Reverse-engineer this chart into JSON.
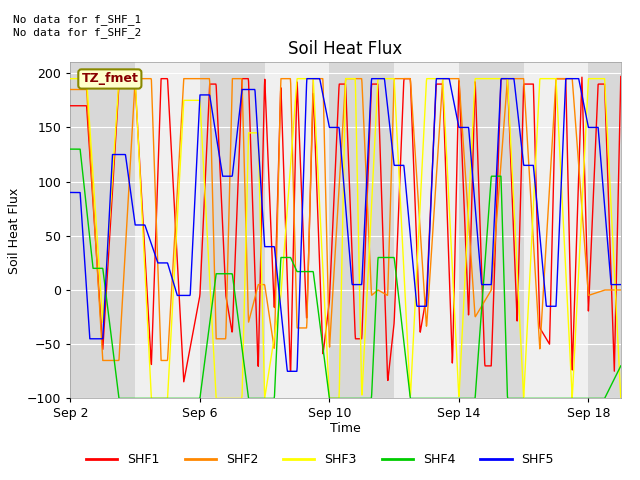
{
  "title": "Soil Heat Flux",
  "ylabel": "Soil Heat Flux",
  "xlabel": "Time",
  "annotation_top": "No data for f_SHF_1\nNo data for f_SHF_2",
  "box_label": "TZ_fmet",
  "ylim": [
    -100,
    210
  ],
  "yticks": [
    -100,
    -50,
    0,
    50,
    100,
    150,
    200
  ],
  "colors": {
    "SHF1": "#ff0000",
    "SHF2": "#ff8800",
    "SHF3": "#ffff00",
    "SHF4": "#00cc00",
    "SHF5": "#0000ff"
  },
  "background_color": "#ffffff",
  "band_light": "#f0f0f0",
  "band_dark": "#d8d8d8",
  "xtick_labels": [
    "Sep 2",
    "Sep 6",
    "Sep 10",
    "Sep 14",
    "Sep 18"
  ],
  "xtick_positions": [
    0,
    4,
    8,
    12,
    16
  ],
  "xlim": [
    0,
    17
  ],
  "shf1_x": [
    0,
    0.5,
    1.0,
    1.5,
    2.0,
    2.5,
    2.8,
    3.0,
    3.5,
    4.0,
    4.3,
    4.5,
    4.8,
    5.0,
    5.3,
    5.5,
    5.8,
    6.0,
    6.3,
    6.5,
    6.8,
    7.0,
    7.3,
    7.5,
    7.8,
    8.0,
    8.3,
    8.5,
    8.8,
    9.0,
    9.3,
    9.5,
    9.8,
    10.0,
    10.3,
    10.5,
    10.8,
    11.0,
    11.3,
    11.5,
    11.8,
    12.0,
    12.3,
    12.5,
    12.8,
    13.0,
    13.3,
    13.5,
    13.8,
    14.0,
    14.3,
    14.5,
    14.8,
    15.0,
    15.3,
    15.5,
    15.8,
    16.0,
    16.3,
    16.5,
    16.8,
    17.0
  ],
  "shf1_y": [
    170,
    170,
    -55,
    190,
    190,
    -70,
    195,
    195,
    -85,
    -5,
    190,
    190,
    -5,
    -40,
    195,
    195,
    -75,
    197,
    -20,
    190,
    -80,
    195,
    -30,
    185,
    -60,
    -10,
    190,
    190,
    -45,
    -45,
    190,
    190,
    -85,
    -30,
    195,
    195,
    -40,
    -5,
    190,
    190,
    -70,
    197,
    -25,
    195,
    -70,
    -70,
    195,
    195,
    -30,
    190,
    190,
    -35,
    -50,
    195,
    195,
    -75,
    197,
    -20,
    190,
    190,
    -75,
    197
  ],
  "shf2_x": [
    0,
    0.5,
    1.0,
    1.5,
    2.0,
    2.5,
    2.8,
    3.0,
    3.5,
    4.0,
    4.3,
    4.5,
    4.8,
    5.0,
    5.3,
    5.5,
    5.8,
    6.0,
    6.3,
    6.5,
    6.8,
    7.0,
    7.3,
    7.5,
    7.8,
    8.0,
    8.5,
    9.0,
    9.3,
    9.5,
    9.8,
    10.0,
    10.5,
    11.0,
    11.5,
    12.0,
    12.5,
    13.0,
    13.5,
    14.0,
    14.5,
    15.0,
    15.5,
    16.0,
    16.5,
    17.0
  ],
  "shf2_y": [
    185,
    185,
    -65,
    -65,
    195,
    195,
    -65,
    -65,
    195,
    195,
    195,
    -45,
    -45,
    195,
    195,
    -30,
    5,
    5,
    -55,
    195,
    195,
    -35,
    -35,
    195,
    195,
    -55,
    195,
    195,
    -5,
    0,
    -5,
    195,
    195,
    -35,
    195,
    195,
    -25,
    0,
    195,
    195,
    -55,
    195,
    195,
    -5,
    0,
    0
  ],
  "shf3_x": [
    0,
    0.5,
    1.0,
    1.5,
    2.0,
    2.5,
    3.0,
    3.5,
    4.0,
    4.5,
    5.0,
    5.3,
    5.5,
    5.8,
    6.0,
    6.5,
    7.0,
    7.5,
    8.0,
    8.3,
    8.5,
    8.8,
    9.0,
    9.5,
    10.0,
    10.5,
    11.0,
    11.5,
    12.0,
    12.5,
    13.0,
    13.5,
    14.0,
    14.5,
    15.0,
    15.5,
    16.0,
    16.5,
    17.0
  ],
  "shf3_y": [
    195,
    195,
    -30,
    195,
    195,
    -100,
    -100,
    175,
    175,
    -100,
    -100,
    -100,
    145,
    145,
    -100,
    -5,
    195,
    195,
    -100,
    -100,
    195,
    195,
    -100,
    195,
    195,
    -100,
    195,
    195,
    -100,
    195,
    195,
    195,
    -100,
    195,
    195,
    -100,
    195,
    195,
    -100
  ],
  "shf4_x": [
    0,
    0.3,
    0.7,
    1.0,
    1.5,
    2.0,
    2.3,
    2.5,
    3.0,
    3.5,
    4.0,
    4.5,
    5.0,
    5.5,
    6.0,
    6.3,
    6.5,
    6.8,
    7.0,
    7.5,
    8.0,
    8.3,
    8.5,
    8.8,
    9.0,
    9.3,
    9.5,
    10.0,
    10.5,
    11.0,
    11.5,
    12.0,
    12.5,
    13.0,
    13.3,
    13.5,
    14.0,
    14.5,
    15.0,
    15.3,
    15.5,
    15.8,
    16.0,
    16.5,
    17.0
  ],
  "shf4_y": [
    130,
    130,
    20,
    20,
    -100,
    -100,
    -100,
    -100,
    -100,
    -100,
    -100,
    15,
    15,
    -100,
    -100,
    -100,
    30,
    30,
    17,
    17,
    -100,
    -100,
    -100,
    -100,
    -100,
    -100,
    30,
    30,
    -100,
    -100,
    -100,
    -100,
    -100,
    105,
    105,
    -100,
    -100,
    -100,
    -100,
    -100,
    -100,
    -100,
    -100,
    -100,
    -70
  ],
  "shf5_x": [
    0,
    0.3,
    0.6,
    1.0,
    1.3,
    1.7,
    2.0,
    2.3,
    2.7,
    3.0,
    3.3,
    3.7,
    4.0,
    4.3,
    4.7,
    5.0,
    5.3,
    5.7,
    6.0,
    6.3,
    6.7,
    7.0,
    7.3,
    7.7,
    8.0,
    8.3,
    8.7,
    9.0,
    9.3,
    9.7,
    10.0,
    10.3,
    10.7,
    11.0,
    11.3,
    11.7,
    12.0,
    12.3,
    12.7,
    13.0,
    13.3,
    13.7,
    14.0,
    14.3,
    14.7,
    15.0,
    15.3,
    15.7,
    16.0,
    16.3,
    16.7,
    17.0
  ],
  "shf5_y": [
    90,
    90,
    -45,
    -45,
    125,
    125,
    60,
    60,
    25,
    25,
    -5,
    -5,
    180,
    180,
    105,
    105,
    185,
    185,
    40,
    40,
    -75,
    -75,
    195,
    195,
    150,
    150,
    5,
    5,
    195,
    195,
    115,
    115,
    -15,
    -15,
    195,
    195,
    150,
    150,
    5,
    5,
    195,
    195,
    115,
    115,
    -15,
    -15,
    195,
    195,
    150,
    150,
    5,
    5
  ]
}
